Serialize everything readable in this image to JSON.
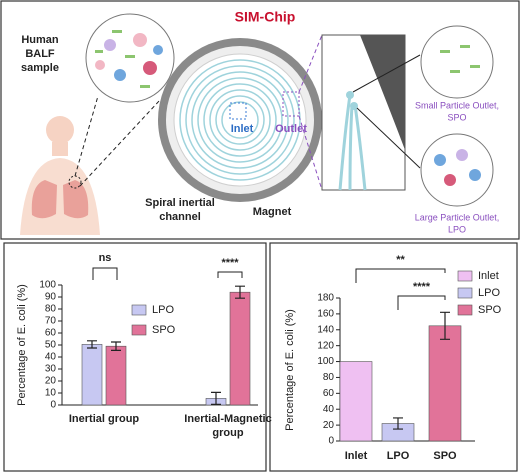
{
  "diagram": {
    "title": "SIM-Chip",
    "sample_label": [
      "Human",
      "BALF",
      "sample"
    ],
    "inlet": "Inlet",
    "outlet": "Outlet",
    "channel_label": [
      "Spiral inertial",
      "channel"
    ],
    "magnet_label": "Magnet",
    "spo_label": [
      "Small Particle Outlet,",
      "SPO"
    ],
    "lpo_label": [
      "Large Particle Outlet,",
      "LPO"
    ]
  },
  "chart_data": [
    {
      "type": "bar",
      "ylabel": "Percentage of E. coli (%)",
      "categories": [
        "Inertial group",
        "Inertial-Magnetic group"
      ],
      "series": [
        {
          "name": "LPO",
          "color": "#c7c8f2",
          "values": [
            50.5,
            5.5
          ],
          "errors": [
            3,
            5
          ]
        },
        {
          "name": "SPO",
          "color": "#e17399",
          "values": [
            49,
            94
          ],
          "errors": [
            3.5,
            5
          ]
        }
      ],
      "ylim": [
        0,
        100
      ],
      "yticks": [
        0,
        10,
        20,
        30,
        40,
        50,
        60,
        70,
        80,
        90,
        100
      ],
      "annotations": [
        "ns",
        "****"
      ],
      "legend": "right"
    },
    {
      "type": "bar",
      "ylabel": "Percentage of E. coli (%)",
      "categories": [
        "Inlet",
        "LPO",
        "SPO"
      ],
      "values": [
        100,
        22,
        145
      ],
      "errors": [
        null,
        7,
        17
      ],
      "colors": [
        "#efc0f2",
        "#c7c8f2",
        "#e17399"
      ],
      "ylim": [
        0,
        180
      ],
      "yticks": [
        0,
        20,
        40,
        60,
        80,
        100,
        120,
        140,
        160,
        180
      ],
      "annotations": [
        "**",
        "****"
      ],
      "legend": "upper right"
    }
  ]
}
